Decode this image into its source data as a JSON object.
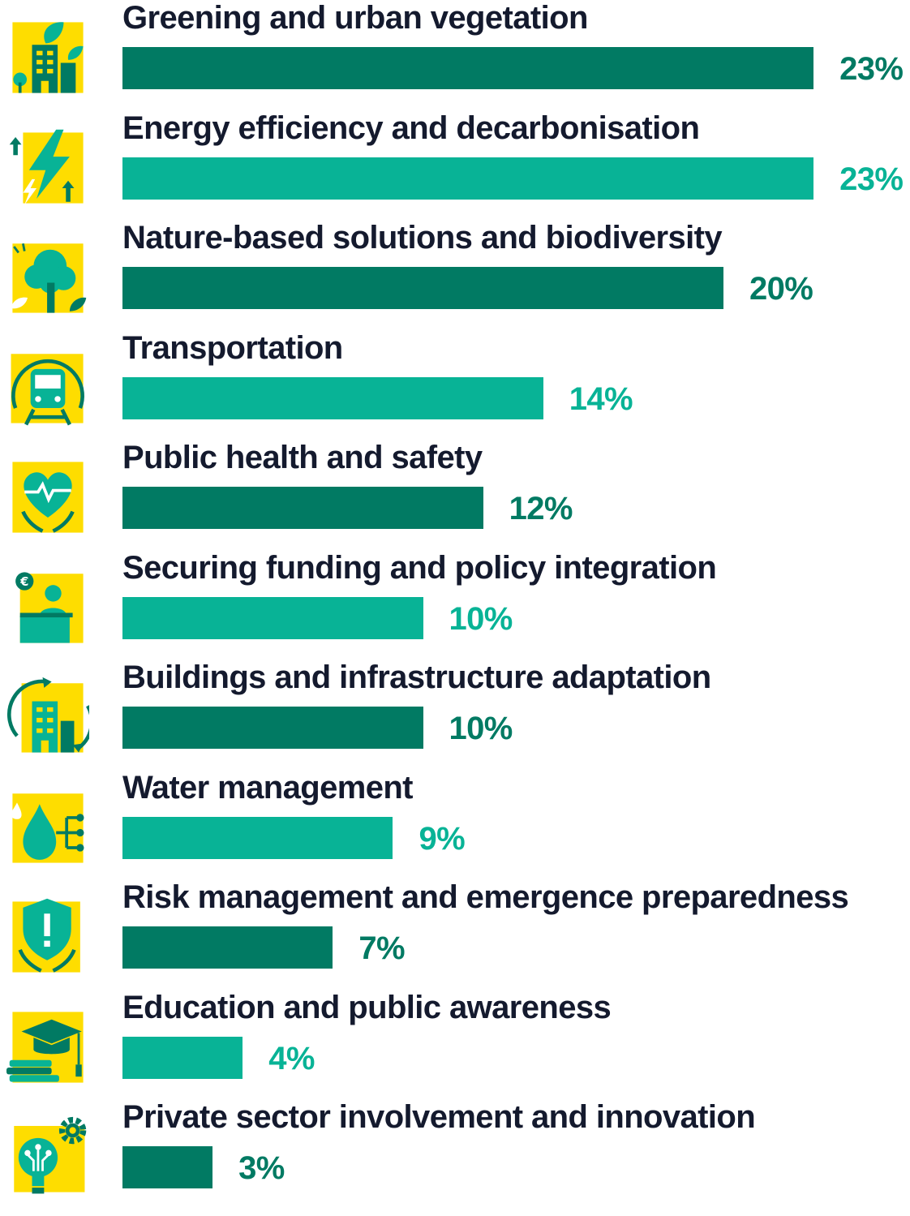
{
  "chart_data": {
    "type": "bar",
    "orientation": "horizontal",
    "categories": [
      "Greening and urban vegetation",
      "Energy efficiency and decarbonisation",
      "Nature-based solutions and biodiversity",
      "Transportation",
      "Public health and safety",
      "Securing funding and policy integration",
      "Buildings and infrastructure adaptation",
      "Water management",
      "Risk management and emergence preparedness",
      "Education and public awareness",
      "Private sector involvement and innovation"
    ],
    "values": [
      23,
      23,
      20,
      14,
      12,
      10,
      10,
      9,
      7,
      4,
      3
    ],
    "value_labels": [
      "23%",
      "23%",
      "20%",
      "14%",
      "12%",
      "10%",
      "10%",
      "9%",
      "7%",
      "4%",
      "3%"
    ],
    "icons": [
      "green-buildings-icon",
      "energy-bolt-icon",
      "tree-icon",
      "train-icon",
      "heart-hands-icon",
      "funding-podium-icon",
      "building-cycle-icon",
      "water-drop-icon",
      "shield-hands-icon",
      "graduation-books-icon",
      "lightbulb-gear-icon"
    ],
    "grid": false,
    "legend": "none"
  },
  "colors": {
    "dark_green": "#017a63",
    "light_green": "#08b396",
    "icon_background": "#fedd00",
    "label_text": "#141a2e"
  }
}
